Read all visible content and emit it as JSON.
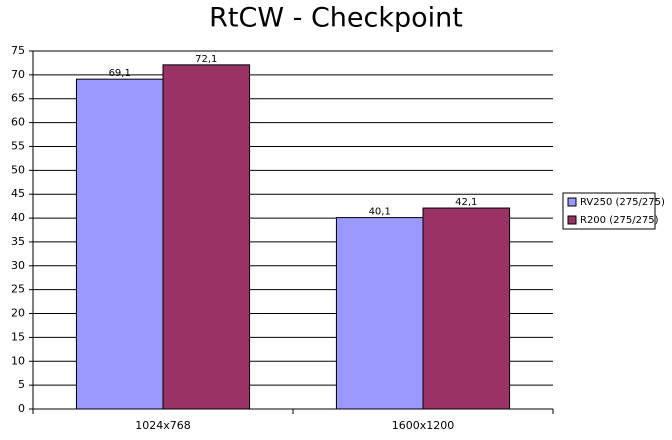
{
  "chart_data": {
    "type": "bar",
    "title": "RtCW - Checkpoint",
    "categories": [
      "1024x768",
      "1600x1200"
    ],
    "series": [
      {
        "name": "RV250 (275/275)",
        "color": "#9999ff",
        "values": [
          69.1,
          40.1
        ],
        "value_labels": [
          "69,1",
          "40,1"
        ]
      },
      {
        "name": "R200 (275/275)",
        "color": "#993366",
        "values": [
          72.1,
          42.1
        ],
        "value_labels": [
          "72,1",
          "42,1"
        ]
      }
    ],
    "ylim": [
      0,
      75
    ],
    "yticks": [
      0,
      5,
      10,
      15,
      20,
      25,
      30,
      35,
      40,
      45,
      50,
      55,
      60,
      65,
      70,
      75
    ],
    "grid": true,
    "legend": "right"
  }
}
